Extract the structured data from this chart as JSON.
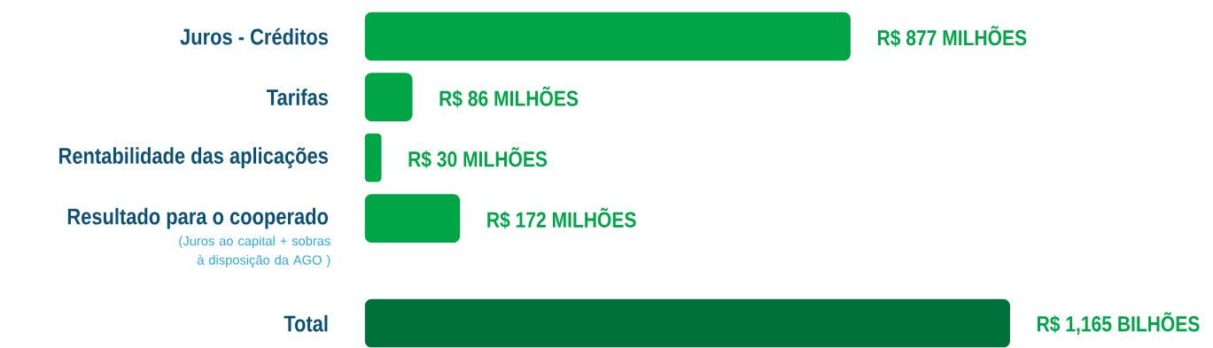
{
  "chart_data": {
    "type": "bar",
    "orientation": "horizontal",
    "categories": [
      "Juros - Créditos",
      "Tarifas",
      "Rentabilidade das aplicações",
      "Resultado para o cooperado",
      "Total"
    ],
    "values": [
      877,
      86,
      30,
      172,
      1165
    ],
    "colors": [
      "#00a546",
      "#00a546",
      "#00a546",
      "#00a546",
      "#00713a"
    ],
    "value_labels": [
      "R$ 877 MILHÕES",
      "R$ 86 MILHÕES",
      "R$ 30 MILHÕES",
      "R$ 172 MILHÕES",
      "R$ 1,165 BILHÕES"
    ],
    "annotations": [
      "(Juros ao capital + sobras à disposição da AGO )"
    ]
  }
}
